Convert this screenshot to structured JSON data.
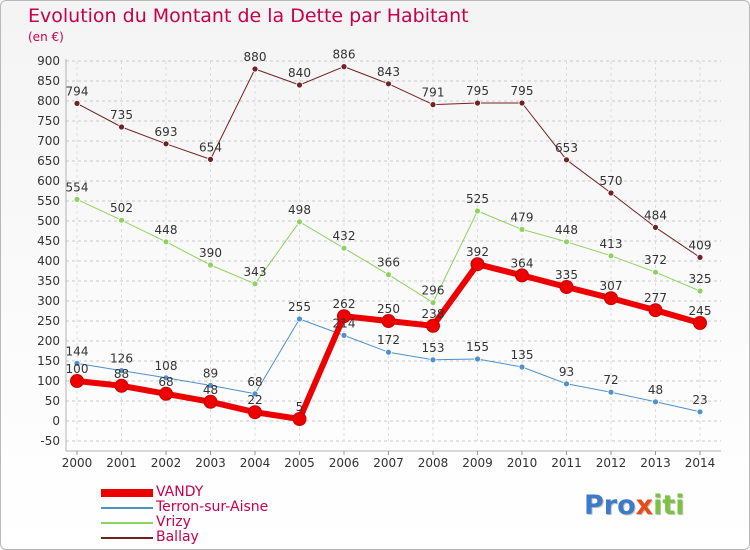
{
  "title": "Evolution du Montant de la Dette par Habitant",
  "unit": "(en €)",
  "logo": {
    "p1": "Pro",
    "x": "x",
    "i": "iti"
  },
  "chart_data": {
    "type": "line",
    "title": "Evolution du Montant de la Dette par Habitant",
    "ylabel": "(en €)",
    "xlabel": "",
    "ylim": [
      -50,
      900
    ],
    "yticks": [
      -50,
      0,
      50,
      100,
      150,
      200,
      250,
      300,
      350,
      400,
      450,
      500,
      550,
      600,
      650,
      700,
      750,
      800,
      850,
      900
    ],
    "x": [
      "2000",
      "2001",
      "2002",
      "2003",
      "2004",
      "2005",
      "2006",
      "2007",
      "2008",
      "2009",
      "2010",
      "2011",
      "2012",
      "2013",
      "2014"
    ],
    "grid": "horizontal dashed",
    "legend": "bottom-left",
    "series": [
      {
        "name": "Ballay",
        "color": "#722222",
        "width": 1,
        "values": [
          794,
          735,
          693,
          654,
          880,
          840,
          886,
          843,
          791,
          795,
          795,
          653,
          570,
          484,
          409
        ],
        "labels": [
          "794",
          "735",
          "693",
          "654",
          "880",
          "840",
          "886",
          "843",
          "791",
          "795",
          "795",
          "653",
          "570",
          "484",
          "409"
        ]
      },
      {
        "name": "Vrizy",
        "color": "#8ed35f",
        "width": 1,
        "values": [
          554,
          502,
          448,
          390,
          343,
          498,
          432,
          366,
          296,
          525,
          479,
          448,
          413,
          372,
          325
        ],
        "labels": [
          "554",
          "502",
          "448",
          "390",
          "343",
          "498",
          "432",
          "366",
          "296",
          "525",
          "479",
          "448",
          "413",
          "372",
          "325"
        ]
      },
      {
        "name": "Terron-sur-Aisne",
        "color": "#4e91cc",
        "width": 1,
        "values": [
          144,
          126,
          108,
          89,
          68,
          255,
          214,
          172,
          153,
          155,
          135,
          93,
          72,
          48,
          23
        ],
        "labels": [
          "144",
          "126",
          "108",
          "89",
          "68",
          "255",
          "214",
          "172",
          "153",
          "155",
          "135",
          "93",
          "72",
          "48",
          "23"
        ]
      },
      {
        "name": "VANDY",
        "color": "#ec0000",
        "width": 6,
        "values": [
          100,
          88,
          68,
          48,
          22,
          5,
          262,
          250,
          238,
          392,
          364,
          335,
          307,
          277,
          245
        ],
        "labels": [
          "100",
          "88",
          "68",
          "48",
          "22",
          "5",
          "262",
          "250",
          "238",
          "392",
          "364",
          "335",
          "307",
          "277",
          "245"
        ]
      }
    ]
  }
}
